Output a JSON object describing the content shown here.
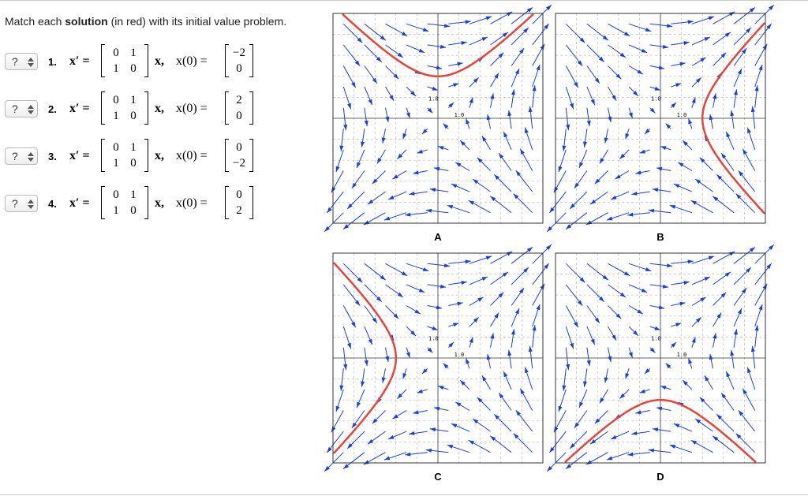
{
  "prompt": {
    "before": "Match each",
    "bold": "solution",
    "after": "(in red) with its initial value problem."
  },
  "problems": [
    {
      "select": "?",
      "number": "1.",
      "lhs": "x′ =",
      "matrix": [
        [
          "0",
          "1"
        ],
        [
          "1",
          "0"
        ]
      ],
      "mid": "x,",
      "ic_label": "x(0) =",
      "ic": [
        "−2",
        "0"
      ]
    },
    {
      "select": "?",
      "number": "2.",
      "lhs": "x′ =",
      "matrix": [
        [
          "0",
          "1"
        ],
        [
          "1",
          "0"
        ]
      ],
      "mid": "x,",
      "ic_label": "x(0) =",
      "ic": [
        "2",
        "0"
      ]
    },
    {
      "select": "?",
      "number": "3.",
      "lhs": "x′ =",
      "matrix": [
        [
          "0",
          "1"
        ],
        [
          "1",
          "0"
        ]
      ],
      "mid": "x,",
      "ic_label": "x(0) =",
      "ic": [
        "0",
        "−2"
      ]
    },
    {
      "select": "?",
      "number": "4.",
      "lhs": "x′ =",
      "matrix": [
        [
          "0",
          "1"
        ],
        [
          "1",
          "0"
        ]
      ],
      "mid": "x,",
      "ic_label": "x(0) =",
      "ic": [
        "0",
        "2"
      ]
    }
  ],
  "graphs": [
    {
      "label": "A",
      "tick_y": "1.0",
      "tick_x": "1.0"
    },
    {
      "label": "B",
      "tick_y": "1.0",
      "tick_x": "1.0"
    },
    {
      "label": "C",
      "tick_y": "1.0",
      "tick_x": "1.0"
    },
    {
      "label": "D",
      "tick_y": "1.0",
      "tick_x": "1.0"
    }
  ]
}
